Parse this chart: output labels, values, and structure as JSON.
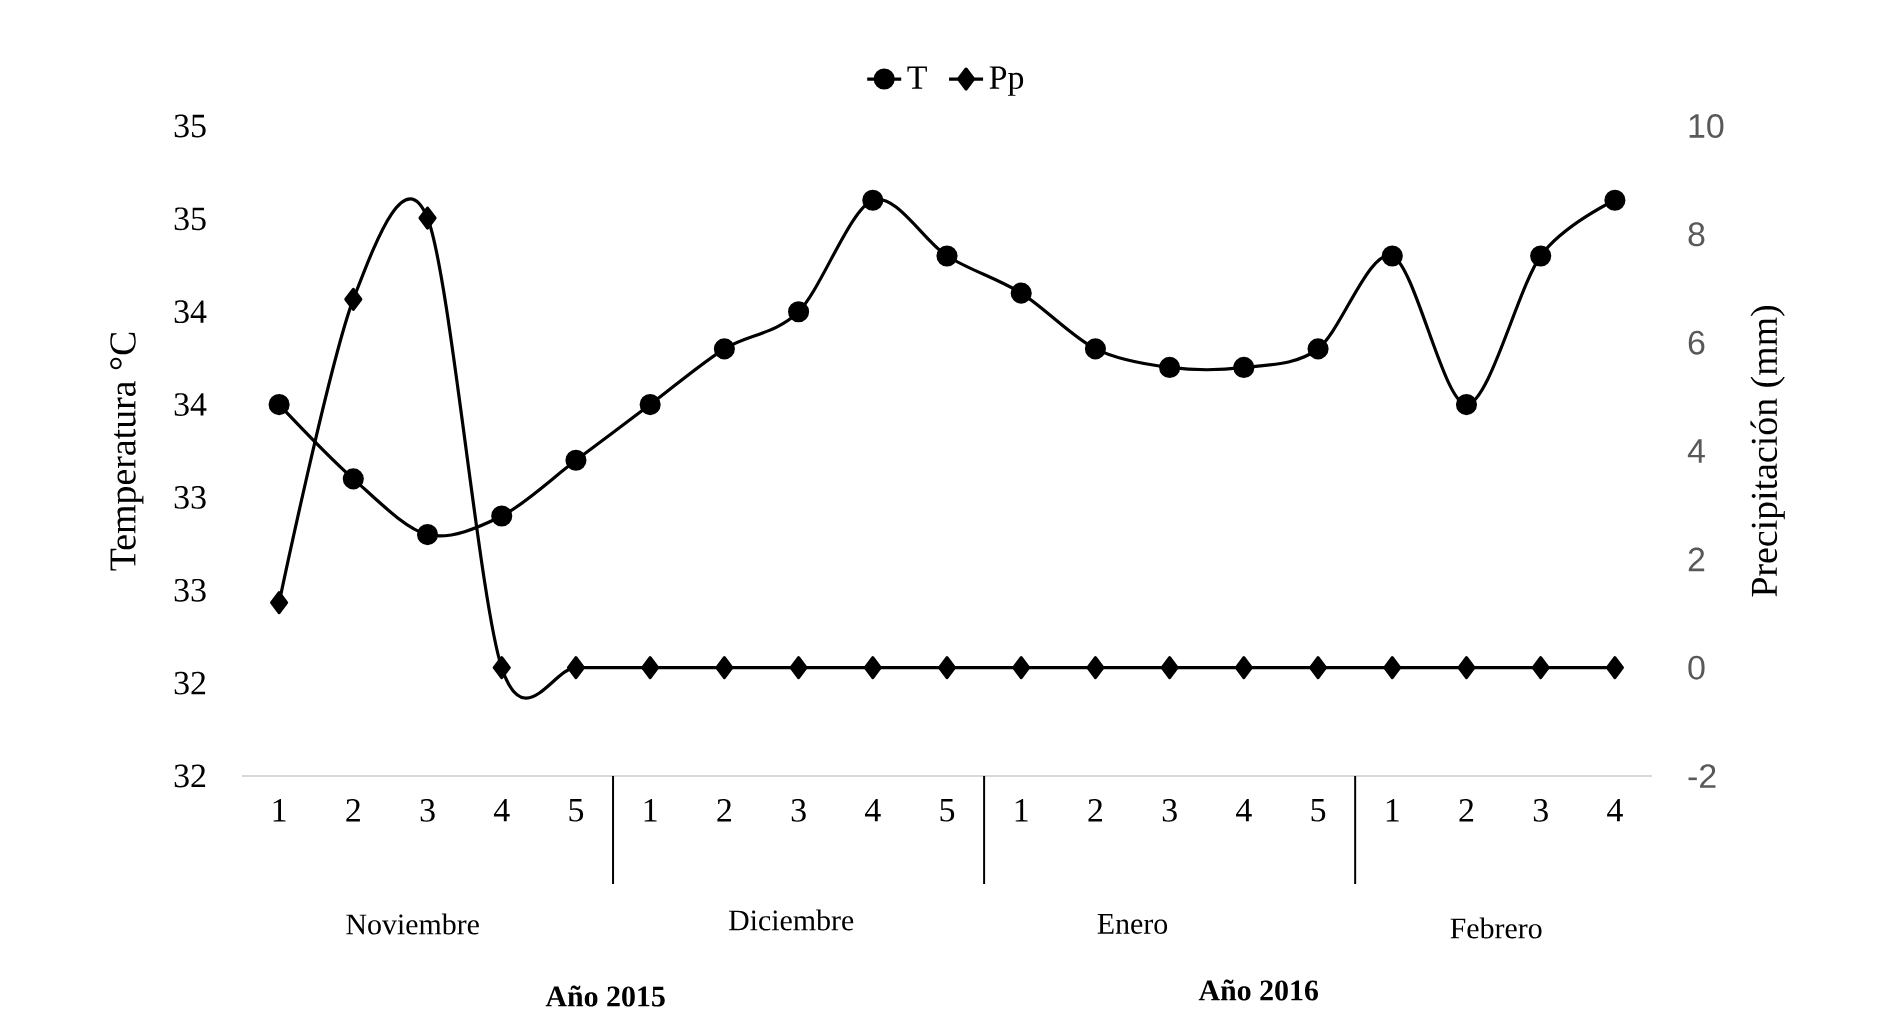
{
  "chart_data": {
    "type": "line",
    "categories": [
      "1",
      "2",
      "3",
      "4",
      "5",
      "1",
      "2",
      "3",
      "4",
      "5",
      "1",
      "2",
      "3",
      "4",
      "5",
      "1",
      "2",
      "3",
      "4"
    ],
    "ylabel": "Temperatura °C",
    "y2label": "Precipitación (mm)",
    "ylim": [
      31.5,
      35
    ],
    "yticks": [
      {
        "value": 31.5,
        "label": "32"
      },
      {
        "value": 32,
        "label": "32"
      },
      {
        "value": 32.5,
        "label": "33"
      },
      {
        "value": 33,
        "label": "33"
      },
      {
        "value": 33.5,
        "label": "34"
      },
      {
        "value": 34,
        "label": "34"
      },
      {
        "value": 34.5,
        "label": "35"
      },
      {
        "value": 35,
        "label": "35"
      }
    ],
    "y2lim": [
      -2,
      10
    ],
    "y2ticks": [
      -2,
      0,
      2,
      4,
      6,
      8,
      10
    ],
    "legend": "top",
    "annotations": [
      "Noviembre",
      "Diciembre",
      "Enero",
      "Febrero",
      "**Año 2015**",
      "**Año 2016**"
    ],
    "series": [
      {
        "name": "T",
        "color": "#000000",
        "marker": "circle",
        "values": [
          33.5,
          33.1,
          32.8,
          32.9,
          33.2,
          33.5,
          33.8,
          34.0,
          34.6,
          34.3,
          34.1,
          33.8,
          33.7,
          33.7,
          33.8,
          34.3,
          33.5,
          34.3,
          34.6
        ]
      },
      {
        "name": "Pp",
        "color": "#000000",
        "marker": "diamond",
        "axis": "y2",
        "values": [
          1.2,
          6.8,
          8.3,
          0,
          0,
          0,
          0,
          0,
          0,
          0,
          0,
          0,
          0,
          0,
          0,
          0,
          0,
          0,
          0
        ]
      }
    ]
  }
}
